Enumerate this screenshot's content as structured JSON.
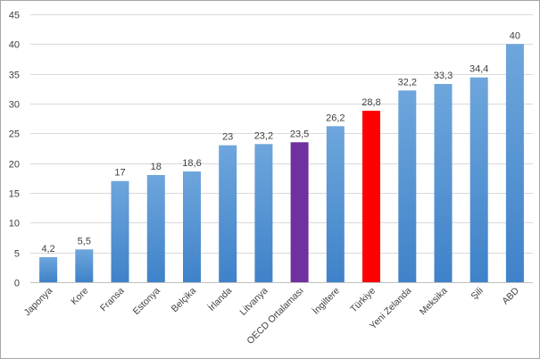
{
  "chart_data": {
    "type": "bar",
    "title": "",
    "xlabel": "",
    "ylabel": "",
    "ylim": [
      0,
      45
    ],
    "yticks": [
      0,
      5,
      10,
      15,
      20,
      25,
      30,
      35,
      40,
      45
    ],
    "grid": true,
    "legend": "none",
    "categories": [
      "Japonya",
      "Kore",
      "Fransa",
      "Estonya",
      "Belçika",
      "İrlanda",
      "Litvanya",
      "OECD Ortalaması",
      "İngiltere",
      "Türkiye",
      "Yeni Zelanda",
      "Meksika",
      "Şili",
      "ABD"
    ],
    "values": [
      4.2,
      5.5,
      17,
      18,
      18.6,
      23,
      23.2,
      23.5,
      26.2,
      28.8,
      32.2,
      33.3,
      34.4,
      40
    ],
    "value_labels": [
      "4,2",
      "5,5",
      "17",
      "18",
      "18,6",
      "23",
      "23,2",
      "23,5",
      "26,2",
      "28,8",
      "32,2",
      "33,3",
      "34,4",
      "40"
    ],
    "colors": {
      "default": "#5b9bd5",
      "highlight_oecd": "#7030a0",
      "highlight_turkiye": "#ff0000",
      "grid": "#d9d9d9",
      "axis": "#bfbfbf"
    },
    "bar_color_keys": [
      "default",
      "default",
      "default",
      "default",
      "default",
      "default",
      "default",
      "highlight_oecd",
      "default",
      "highlight_turkiye",
      "default",
      "default",
      "default",
      "default"
    ]
  }
}
